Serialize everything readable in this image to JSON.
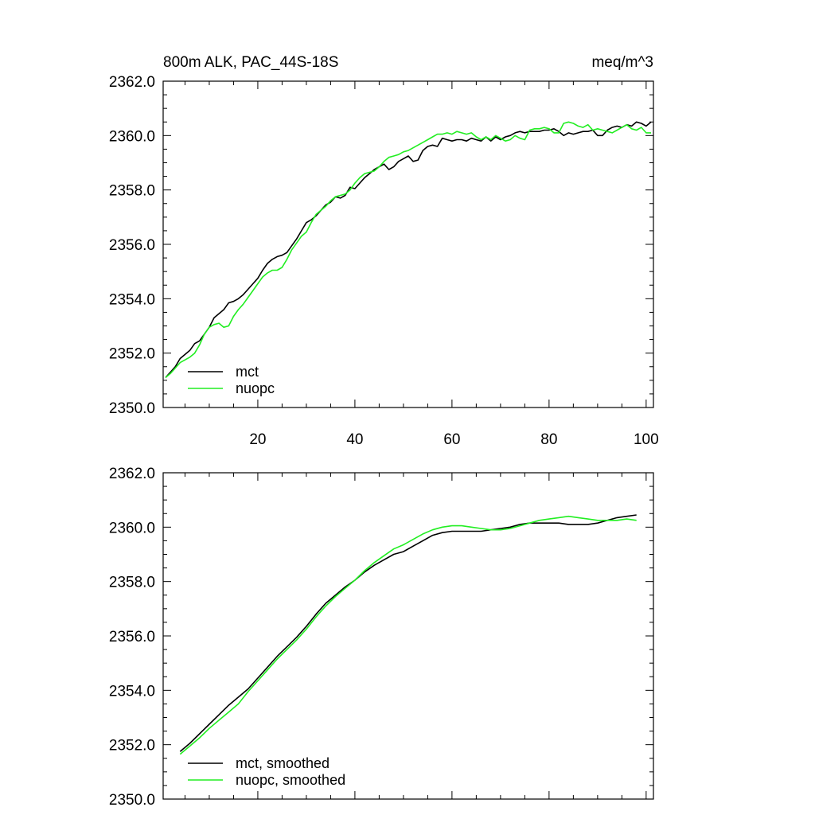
{
  "chart_data": [
    {
      "type": "line",
      "title": "800m ALK, PAC_44S-18S",
      "units": "meq/m^3",
      "xlabel": "",
      "ylabel": "",
      "xlim": [
        0.5,
        101.5
      ],
      "ylim": [
        2350.0,
        2362.0
      ],
      "yticks": [
        "2350.0",
        "2352.0",
        "2354.0",
        "2356.0",
        "2358.0",
        "2360.0",
        "2362.0"
      ],
      "xticks": [
        "20",
        "40",
        "60",
        "80",
        "100"
      ],
      "legend_position": "bottom-left",
      "series": [
        {
          "name": "mct",
          "color": "#000000",
          "x": [
            1,
            2,
            3,
            4,
            5,
            6,
            7,
            8,
            9,
            10,
            11,
            12,
            13,
            14,
            15,
            16,
            17,
            18,
            19,
            20,
            21,
            22,
            23,
            24,
            25,
            26,
            27,
            28,
            29,
            30,
            31,
            32,
            33,
            34,
            35,
            36,
            37,
            38,
            39,
            40,
            41,
            42,
            43,
            44,
            45,
            46,
            47,
            48,
            49,
            50,
            51,
            52,
            53,
            54,
            55,
            56,
            57,
            58,
            59,
            60,
            61,
            62,
            63,
            64,
            65,
            66,
            67,
            68,
            69,
            70,
            71,
            72,
            73,
            74,
            75,
            76,
            77,
            78,
            79,
            80,
            81,
            82,
            83,
            84,
            85,
            86,
            87,
            88,
            89,
            90,
            91,
            92,
            93,
            94,
            95,
            96,
            97,
            98,
            99,
            100,
            101
          ],
          "values": [
            2351.1,
            2351.3,
            2351.5,
            2351.8,
            2351.95,
            2352.1,
            2352.35,
            2352.45,
            2352.7,
            2352.95,
            2353.3,
            2353.45,
            2353.6,
            2353.85,
            2353.9,
            2354.0,
            2354.15,
            2354.35,
            2354.55,
            2354.75,
            2355.05,
            2355.3,
            2355.45,
            2355.55,
            2355.6,
            2355.7,
            2355.95,
            2356.2,
            2356.5,
            2356.8,
            2356.9,
            2357.05,
            2357.25,
            2357.45,
            2357.55,
            2357.75,
            2357.7,
            2357.8,
            2358.1,
            2358.05,
            2358.25,
            2358.45,
            2358.6,
            2358.75,
            2358.85,
            2358.95,
            2358.75,
            2358.85,
            2359.05,
            2359.15,
            2359.25,
            2359.05,
            2359.1,
            2359.45,
            2359.6,
            2359.65,
            2359.6,
            2359.9,
            2359.85,
            2359.8,
            2359.85,
            2359.85,
            2359.8,
            2359.9,
            2359.85,
            2359.8,
            2359.95,
            2359.8,
            2359.95,
            2359.85,
            2359.95,
            2360.0,
            2360.1,
            2360.15,
            2360.1,
            2360.15,
            2360.15,
            2360.15,
            2360.2,
            2360.2,
            2360.25,
            2360.15,
            2360.0,
            2360.1,
            2360.05,
            2360.1,
            2360.15,
            2360.15,
            2360.2,
            2360.0,
            2360.0,
            2360.2,
            2360.3,
            2360.35,
            2360.3,
            2360.4,
            2360.35,
            2360.5,
            2360.45,
            2360.35,
            2360.5
          ]
        },
        {
          "name": "nuopc",
          "color": "#22ee22",
          "x": [
            1,
            2,
            3,
            4,
            5,
            6,
            7,
            8,
            9,
            10,
            11,
            12,
            13,
            14,
            15,
            16,
            17,
            18,
            19,
            20,
            21,
            22,
            23,
            24,
            25,
            26,
            27,
            28,
            29,
            30,
            31,
            32,
            33,
            34,
            35,
            36,
            37,
            38,
            39,
            40,
            41,
            42,
            43,
            44,
            45,
            46,
            47,
            48,
            49,
            50,
            51,
            52,
            53,
            54,
            55,
            56,
            57,
            58,
            59,
            60,
            61,
            62,
            63,
            64,
            65,
            66,
            67,
            68,
            69,
            70,
            71,
            72,
            73,
            74,
            75,
            76,
            77,
            78,
            79,
            80,
            81,
            82,
            83,
            84,
            85,
            86,
            87,
            88,
            89,
            90,
            91,
            92,
            93,
            94,
            95,
            96,
            97,
            98,
            99,
            100,
            101
          ],
          "values": [
            2351.1,
            2351.25,
            2351.45,
            2351.65,
            2351.75,
            2351.85,
            2352.0,
            2352.3,
            2352.7,
            2352.95,
            2353.05,
            2353.1,
            2352.95,
            2353.0,
            2353.35,
            2353.6,
            2353.8,
            2354.05,
            2354.3,
            2354.55,
            2354.8,
            2354.95,
            2355.05,
            2355.05,
            2355.15,
            2355.45,
            2355.8,
            2356.05,
            2356.3,
            2356.45,
            2356.8,
            2357.1,
            2357.25,
            2357.4,
            2357.6,
            2357.75,
            2357.8,
            2357.85,
            2358.0,
            2358.25,
            2358.45,
            2358.6,
            2358.65,
            2358.7,
            2358.85,
            2359.05,
            2359.2,
            2359.25,
            2359.3,
            2359.4,
            2359.45,
            2359.55,
            2359.65,
            2359.75,
            2359.85,
            2359.95,
            2360.05,
            2360.05,
            2360.1,
            2360.05,
            2360.15,
            2360.1,
            2360.05,
            2360.1,
            2359.95,
            2359.85,
            2359.95,
            2359.85,
            2360.0,
            2359.9,
            2359.8,
            2359.85,
            2360.0,
            2359.9,
            2359.85,
            2360.2,
            2360.25,
            2360.25,
            2360.3,
            2360.25,
            2360.1,
            2360.1,
            2360.45,
            2360.5,
            2360.45,
            2360.35,
            2360.3,
            2360.4,
            2360.2,
            2360.25,
            2360.2,
            2360.15,
            2360.1,
            2360.2,
            2360.3,
            2360.4,
            2360.25,
            2360.2,
            2360.3,
            2360.1,
            2360.1
          ]
        }
      ]
    },
    {
      "type": "line",
      "title": "",
      "xlabel": "",
      "ylabel": "",
      "xlim": [
        0.5,
        101.5
      ],
      "ylim": [
        2350.0,
        2362.0
      ],
      "yticks": [
        "2350.0",
        "2352.0",
        "2354.0",
        "2356.0",
        "2358.0",
        "2360.0",
        "2362.0"
      ],
      "xticks": [],
      "legend_position": "bottom-left",
      "series": [
        {
          "name": "mct, smoothed",
          "color": "#000000",
          "x": [
            4,
            6,
            8,
            10,
            12,
            14,
            16,
            18,
            20,
            22,
            24,
            26,
            28,
            30,
            32,
            34,
            36,
            38,
            40,
            42,
            44,
            46,
            48,
            50,
            52,
            54,
            56,
            58,
            60,
            62,
            64,
            66,
            68,
            70,
            72,
            74,
            76,
            78,
            80,
            82,
            84,
            86,
            88,
            90,
            92,
            94,
            96,
            98
          ],
          "values": [
            2351.75,
            2352.05,
            2352.4,
            2352.75,
            2353.1,
            2353.45,
            2353.75,
            2354.05,
            2354.45,
            2354.85,
            2355.25,
            2355.6,
            2355.95,
            2356.35,
            2356.8,
            2357.2,
            2357.5,
            2357.8,
            2358.05,
            2358.35,
            2358.6,
            2358.8,
            2359.0,
            2359.1,
            2359.3,
            2359.5,
            2359.7,
            2359.8,
            2359.85,
            2359.85,
            2359.85,
            2359.85,
            2359.9,
            2359.95,
            2360.0,
            2360.1,
            2360.15,
            2360.15,
            2360.15,
            2360.15,
            2360.1,
            2360.1,
            2360.1,
            2360.15,
            2360.25,
            2360.35,
            2360.4,
            2360.45
          ]
        },
        {
          "name": "nuopc, smoothed",
          "color": "#22ee22",
          "x": [
            4,
            6,
            8,
            10,
            12,
            14,
            16,
            18,
            20,
            22,
            24,
            26,
            28,
            30,
            32,
            34,
            36,
            38,
            40,
            42,
            44,
            46,
            48,
            50,
            52,
            54,
            56,
            58,
            60,
            62,
            64,
            66,
            68,
            70,
            72,
            74,
            76,
            78,
            80,
            82,
            84,
            86,
            88,
            90,
            92,
            94,
            96,
            98
          ],
          "values": [
            2351.65,
            2351.95,
            2352.25,
            2352.6,
            2352.9,
            2353.2,
            2353.5,
            2353.95,
            2354.35,
            2354.75,
            2355.15,
            2355.5,
            2355.85,
            2356.25,
            2356.7,
            2357.1,
            2357.45,
            2357.75,
            2358.05,
            2358.4,
            2358.7,
            2358.95,
            2359.2,
            2359.35,
            2359.55,
            2359.75,
            2359.9,
            2360.0,
            2360.05,
            2360.05,
            2360.0,
            2359.95,
            2359.9,
            2359.9,
            2359.95,
            2360.05,
            2360.15,
            2360.25,
            2360.3,
            2360.35,
            2360.4,
            2360.35,
            2360.3,
            2360.25,
            2360.25,
            2360.25,
            2360.3,
            2360.25
          ]
        }
      ]
    }
  ]
}
